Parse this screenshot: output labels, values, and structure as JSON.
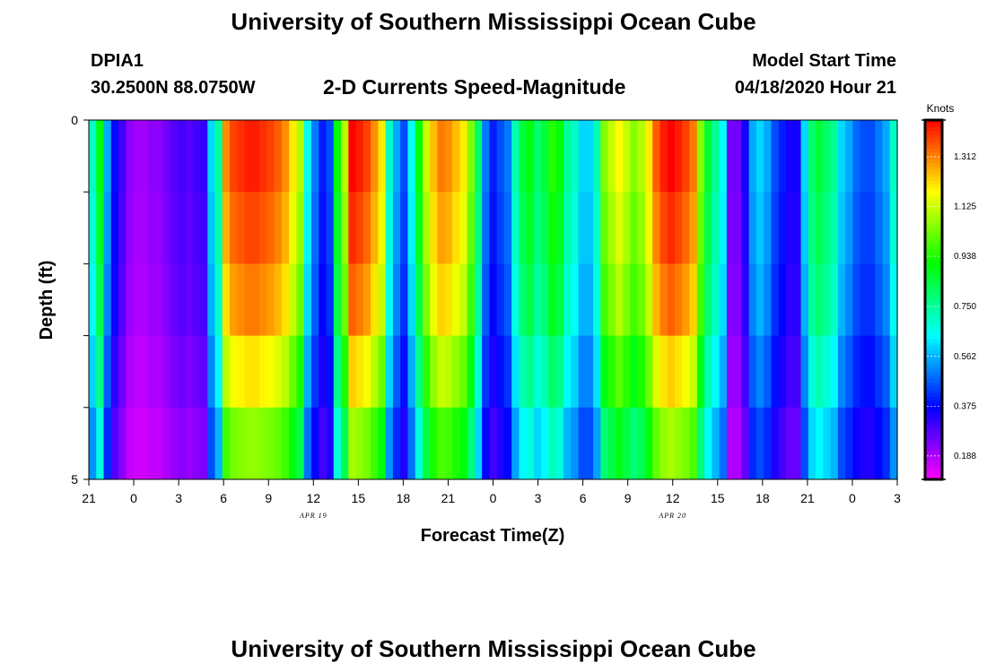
{
  "header": {
    "title": "University of Southern Mississippi Ocean Cube",
    "station_id": "DPIA1",
    "station_coords": "30.2500N 88.0750W",
    "subtitle": "2-D Currents Speed-Magnitude",
    "model_start_label": "Model Start Time",
    "model_start_value": "04/18/2020 Hour 21"
  },
  "footer": {
    "title": "University of Southern Mississippi Ocean Cube"
  },
  "chart_data": {
    "type": "heatmap",
    "title": "2-D Currents Speed-Magnitude",
    "xlabel": "Forecast Time(Z)",
    "ylabel": "Depth (ft)",
    "x_tick_labels": [
      "21",
      "0",
      "3",
      "6",
      "9",
      "12",
      "15",
      "18",
      "21",
      "0",
      "3",
      "6",
      "9",
      "12",
      "15",
      "18",
      "21",
      "0",
      "3"
    ],
    "x_range_hours": [
      0,
      54
    ],
    "date_labels": [
      {
        "label": "APR 19",
        "hour": 15
      },
      {
        "label": "APR 20",
        "hour": 39
      }
    ],
    "y_tick_labels": [
      "0",
      "5"
    ],
    "y_range": [
      0,
      5
    ],
    "colorbar": {
      "label": "Knots",
      "range": [
        0.1,
        1.45
      ],
      "ticks": [
        "0.188",
        "0.375",
        "0.562",
        "0.750",
        "0.938",
        "1.125",
        "1.312"
      ],
      "tick_values": [
        0.188,
        0.375,
        0.562,
        0.75,
        0.938,
        1.125,
        1.312
      ]
    },
    "depth_levels": 5,
    "surface_speed_by_half_hour": [
      0.7,
      0.9,
      0.55,
      0.38,
      0.3,
      0.22,
      0.2,
      0.2,
      0.22,
      0.22,
      0.25,
      0.28,
      0.3,
      0.28,
      0.3,
      0.32,
      0.6,
      0.75,
      1.3,
      1.38,
      1.4,
      1.42,
      1.42,
      1.4,
      1.38,
      1.35,
      1.3,
      1.2,
      1.1,
      0.65,
      0.5,
      0.4,
      0.45,
      0.9,
      1.1,
      1.45,
      1.42,
      1.38,
      1.3,
      1.2,
      0.7,
      0.55,
      0.45,
      0.65,
      0.9,
      1.12,
      1.25,
      1.32,
      1.3,
      1.25,
      1.2,
      1.05,
      0.8,
      0.5,
      0.4,
      0.45,
      0.5,
      0.72,
      0.85,
      0.9,
      0.8,
      0.85,
      0.95,
      0.9,
      0.75,
      0.7,
      0.6,
      0.6,
      0.72,
      1.05,
      1.12,
      1.18,
      1.12,
      1.05,
      1.1,
      1.2,
      1.35,
      1.42,
      1.45,
      1.42,
      1.38,
      1.32,
      1.05,
      0.85,
      0.75,
      0.65,
      0.25,
      0.25,
      0.35,
      0.55,
      0.6,
      0.55,
      0.45,
      0.4,
      0.35,
      0.35,
      0.6,
      0.8,
      0.85,
      0.8,
      0.75,
      0.6,
      0.55,
      0.48,
      0.45,
      0.45,
      0.5,
      0.55,
      0.7
    ]
  }
}
